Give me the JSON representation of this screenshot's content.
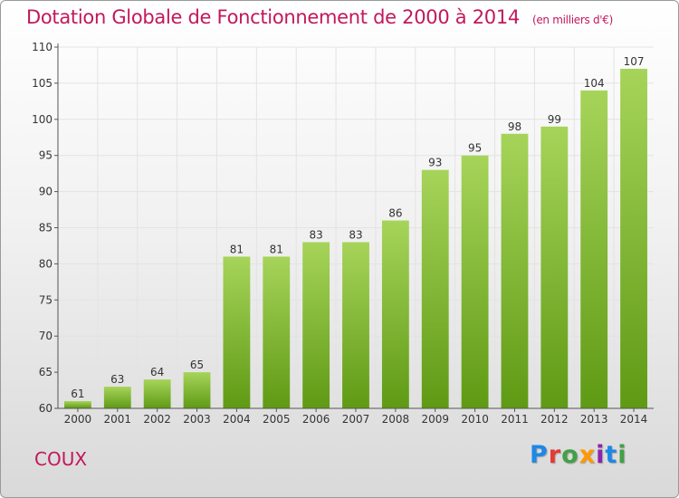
{
  "title": "Dotation Globale de Fonctionnement de 2000 à 2014",
  "unit_note": "(en milliers d'€)",
  "commune": "COUX",
  "logo": {
    "text": "Proxiti",
    "letter_colors": [
      "#1e88e5",
      "#e53935",
      "#43a047",
      "#ff9800",
      "#8e24aa",
      "#1e88e5",
      "#43a047"
    ]
  },
  "colors": {
    "title": "#c2185b",
    "bar_top": "#a6d45a",
    "bar_bottom": "#5f9a14",
    "axis": "#555555",
    "grid": "#e3e3e3"
  },
  "chart_data": {
    "type": "bar",
    "title": "Dotation Globale de Fonctionnement de 2000 à 2014",
    "subtitle": "(en milliers d'€)",
    "categories": [
      "2000",
      "2001",
      "2002",
      "2003",
      "2004",
      "2005",
      "2006",
      "2007",
      "2008",
      "2009",
      "2010",
      "2011",
      "2012",
      "2013",
      "2014"
    ],
    "values": [
      61,
      63,
      64,
      65,
      81,
      81,
      83,
      83,
      86,
      93,
      95,
      98,
      99,
      104,
      107
    ],
    "xlabel": "",
    "ylabel": "",
    "ylim": [
      60,
      110
    ],
    "yticks": [
      60,
      65,
      70,
      75,
      80,
      85,
      90,
      95,
      100,
      105,
      110
    ],
    "grid": true,
    "data_labels": true
  }
}
